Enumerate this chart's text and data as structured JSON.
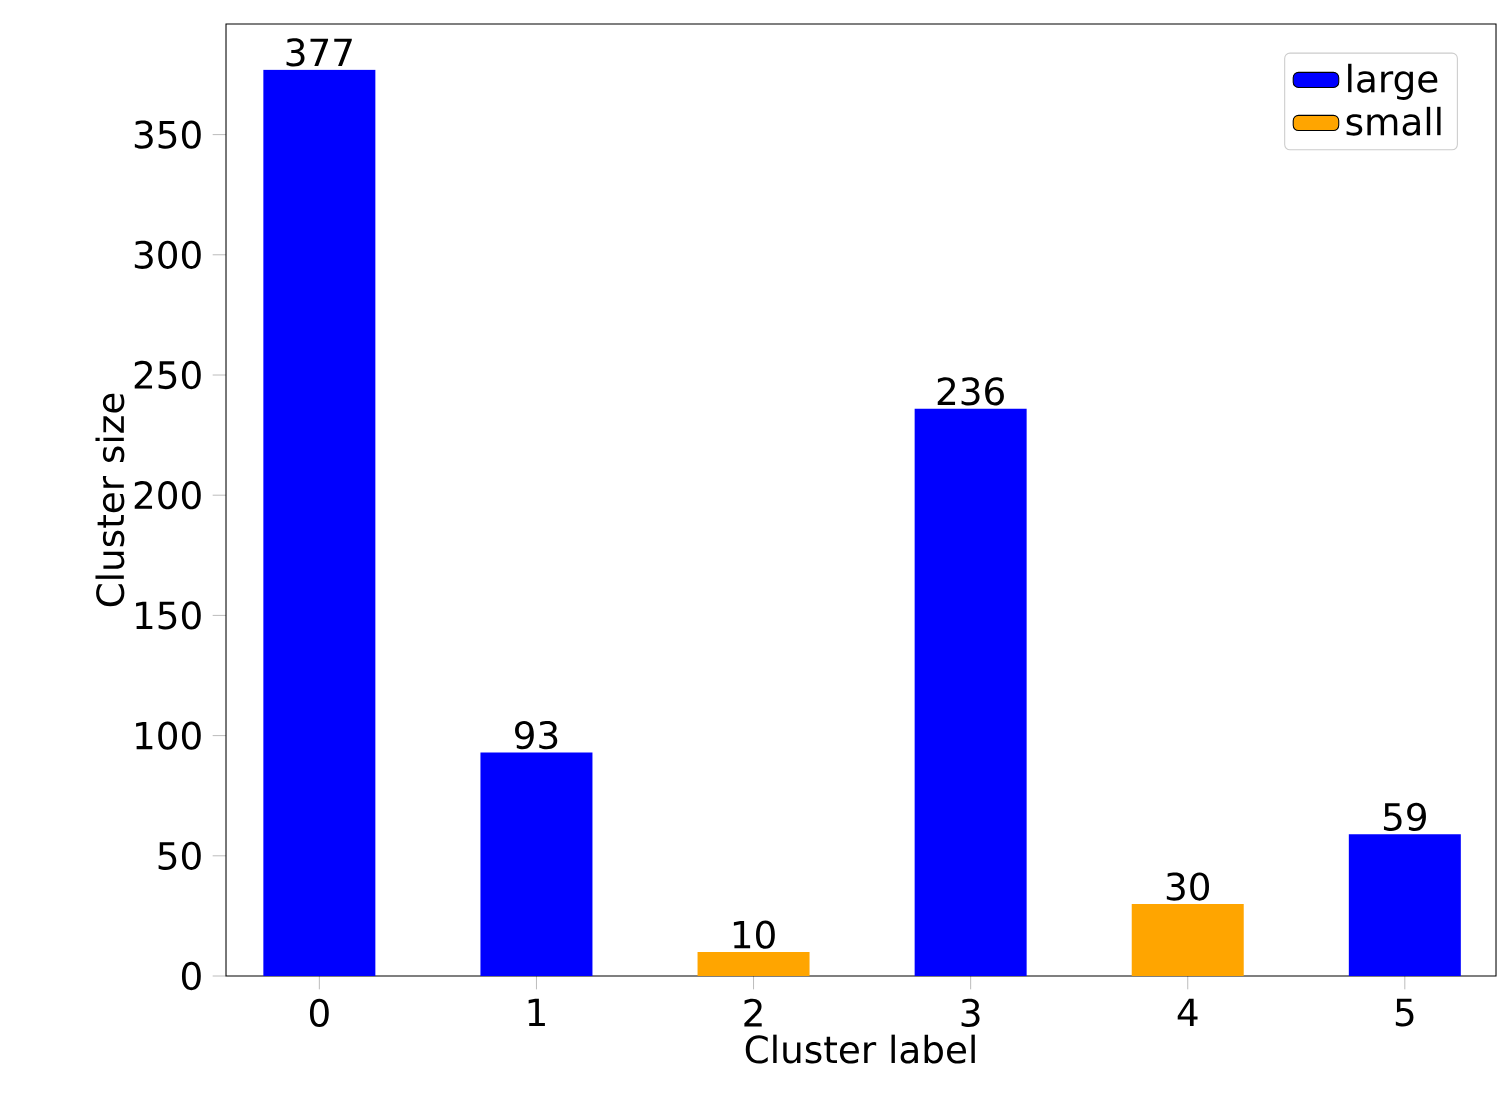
{
  "chart_data": {
    "type": "bar",
    "xlabel": "Cluster label",
    "ylabel": "Cluster size",
    "categories": [
      "0",
      "1",
      "2",
      "3",
      "4",
      "5"
    ],
    "series": [
      {
        "name": "large",
        "color": "#0000ff",
        "values": [
          377,
          93,
          null,
          236,
          null,
          59
        ]
      },
      {
        "name": "small",
        "color": "#ffa500",
        "values": [
          null,
          null,
          10,
          null,
          30,
          null
        ]
      }
    ],
    "ylim": [
      0,
      396
    ],
    "yticks": [
      0,
      50,
      100,
      150,
      200,
      250,
      300,
      350
    ],
    "data_labels": true,
    "legend": "top right",
    "grid": false
  }
}
